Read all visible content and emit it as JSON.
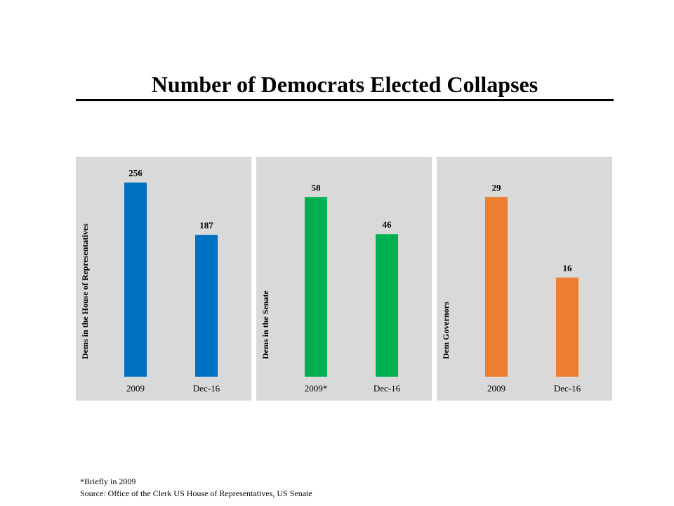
{
  "title": "Number of Democrats Elected Collapses",
  "chart_data": [
    {
      "type": "bar",
      "ylabel": "Dems in the House of Representatives",
      "categories": [
        "2009",
        "Dec-16"
      ],
      "values": [
        256,
        187
      ],
      "color": "#0070c0",
      "ylim": [
        0,
        290
      ]
    },
    {
      "type": "bar",
      "ylabel": "Dems in the Senate",
      "categories": [
        "2009*",
        "Dec-16"
      ],
      "values": [
        58,
        46
      ],
      "color": "#00b050",
      "ylim": [
        0,
        71
      ]
    },
    {
      "type": "bar",
      "ylabel": "Dem Governors",
      "categories": [
        "2009",
        "Dec-16"
      ],
      "values": [
        29,
        16
      ],
      "color": "#ed7d31",
      "ylim": [
        0,
        35.5
      ]
    }
  ],
  "footnotes": {
    "note": "*Briefly in 2009",
    "source": "Source: Office of the Clerk US House of Representatives, US Senate"
  }
}
